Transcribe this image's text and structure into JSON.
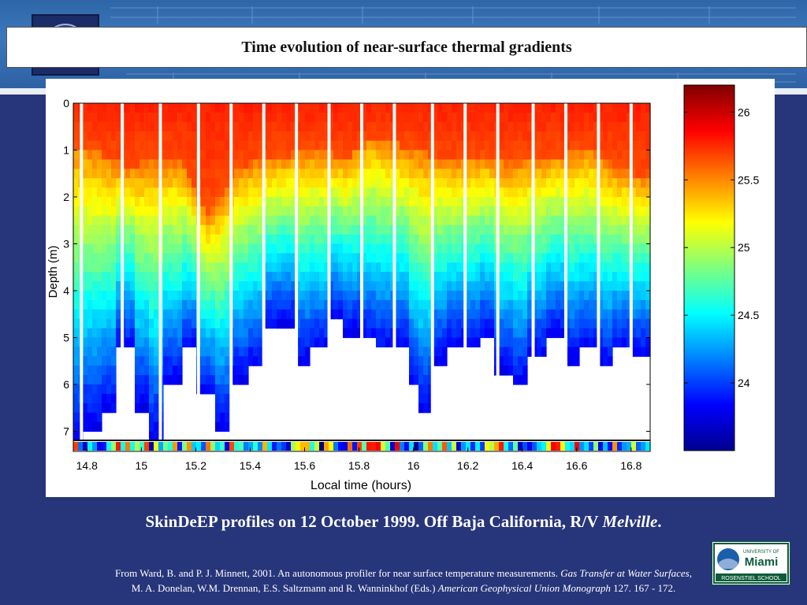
{
  "slide": {
    "title": "Time evolution of near-surface thermal gradients",
    "caption_main": "SkinDeEP profiles on 12 October 1999. Off Baja California,  R/V ",
    "caption_italic": "Melville",
    "caption_end": ".",
    "citation_line1_a": "From  Ward, B. and P. J. Minnett, 2001. An autonomous profiler for near surface temperature measurements. ",
    "citation_line1_italic": "Gas Transfer at Water Surfaces",
    "citation_line1_b": ",",
    "citation_line2_a": "M. A. Donelan, W.M. Drennan, E.S. Saltzmann and R. Wanninkhof (Eds.) ",
    "citation_line2_italic": "American Geophysical Union Monograph",
    "citation_line2_b": " 127. 167 - 172.",
    "logo_text_top": "UNIVERSITY OF",
    "logo_text_main": "Miami",
    "logo_text_bottom": "ROSENSTIEL SCHOOL"
  },
  "colors": {
    "background": "#27357a",
    "header": "#3b78bb",
    "caption_text": "#ffffff"
  },
  "chart_data": {
    "type": "heatmap",
    "title": "",
    "xlabel": "Local time (hours)",
    "ylabel": "Depth (m)",
    "xlim": [
      14.75,
      16.87
    ],
    "ylim": [
      0,
      7.2
    ],
    "y_reversed": true,
    "xticks": [
      "14.8",
      "15",
      "15.2",
      "15.4",
      "15.6",
      "15.8",
      "16",
      "16.2",
      "16.4",
      "16.6",
      "16.8"
    ],
    "yticks": [
      "0",
      "1",
      "2",
      "3",
      "4",
      "5",
      "6",
      "7"
    ],
    "colorbar": {
      "ticks": [
        "24",
        "24.5",
        "25",
        "25.5",
        "26"
      ],
      "range": [
        23.5,
        26.2
      ],
      "colormap": "jet"
    },
    "gap_times": [
      14.78,
      14.93,
      15.07,
      15.21,
      15.33,
      15.45,
      15.57,
      15.69,
      15.81,
      15.93,
      16.07,
      16.19,
      16.31,
      16.44,
      16.56,
      16.68,
      16.8
    ],
    "profile_max_depth": [
      {
        "t": 14.76,
        "depth": 7.2
      },
      {
        "t": 14.82,
        "depth": 6.9
      },
      {
        "t": 14.88,
        "depth": 6.6
      },
      {
        "t": 14.95,
        "depth": 5.3
      },
      {
        "t": 15.0,
        "depth": 6.5
      },
      {
        "t": 15.05,
        "depth": 7.2
      },
      {
        "t": 15.12,
        "depth": 6.0
      },
      {
        "t": 15.17,
        "depth": 5.3
      },
      {
        "t": 15.24,
        "depth": 6.3
      },
      {
        "t": 15.29,
        "depth": 6.9
      },
      {
        "t": 15.36,
        "depth": 5.9
      },
      {
        "t": 15.41,
        "depth": 5.6
      },
      {
        "t": 15.48,
        "depth": 4.8
      },
      {
        "t": 15.53,
        "depth": 4.7
      },
      {
        "t": 15.6,
        "depth": 5.5
      },
      {
        "t": 15.65,
        "depth": 5.3
      },
      {
        "t": 15.72,
        "depth": 4.6
      },
      {
        "t": 15.77,
        "depth": 4.9
      },
      {
        "t": 15.84,
        "depth": 5.1
      },
      {
        "t": 15.89,
        "depth": 5.3
      },
      {
        "t": 15.96,
        "depth": 5.3
      },
      {
        "t": 16.01,
        "depth": 6.1
      },
      {
        "t": 16.04,
        "depth": 6.6
      },
      {
        "t": 16.1,
        "depth": 5.5
      },
      {
        "t": 16.15,
        "depth": 5.2
      },
      {
        "t": 16.22,
        "depth": 5.3
      },
      {
        "t": 16.27,
        "depth": 5.0
      },
      {
        "t": 16.34,
        "depth": 5.7
      },
      {
        "t": 16.38,
        "depth": 6.0
      },
      {
        "t": 16.47,
        "depth": 5.4
      },
      {
        "t": 16.52,
        "depth": 5.0
      },
      {
        "t": 16.59,
        "depth": 5.5
      },
      {
        "t": 16.64,
        "depth": 5.3
      },
      {
        "t": 16.71,
        "depth": 5.6
      },
      {
        "t": 16.76,
        "depth": 5.3
      },
      {
        "t": 16.84,
        "depth": 5.4
      }
    ],
    "warm_layer_depth": [
      {
        "t": 14.76,
        "depth": 0.9
      },
      {
        "t": 14.85,
        "depth": 1.1
      },
      {
        "t": 14.95,
        "depth": 1.4
      },
      {
        "t": 15.05,
        "depth": 1.2
      },
      {
        "t": 15.15,
        "depth": 1.3
      },
      {
        "t": 15.25,
        "depth": 2.4
      },
      {
        "t": 15.35,
        "depth": 1.4
      },
      {
        "t": 15.45,
        "depth": 1.2
      },
      {
        "t": 15.55,
        "depth": 1.1
      },
      {
        "t": 15.65,
        "depth": 1.0
      },
      {
        "t": 15.75,
        "depth": 1.2
      },
      {
        "t": 15.85,
        "depth": 0.7
      },
      {
        "t": 15.95,
        "depth": 0.9
      },
      {
        "t": 16.05,
        "depth": 1.1
      },
      {
        "t": 16.15,
        "depth": 1.3
      },
      {
        "t": 16.25,
        "depth": 1.1
      },
      {
        "t": 16.35,
        "depth": 1.3
      },
      {
        "t": 16.45,
        "depth": 1.2
      },
      {
        "t": 16.55,
        "depth": 1.1
      },
      {
        "t": 16.65,
        "depth": 1.0
      },
      {
        "t": 16.75,
        "depth": 1.4
      },
      {
        "t": 16.85,
        "depth": 1.6
      }
    ]
  }
}
